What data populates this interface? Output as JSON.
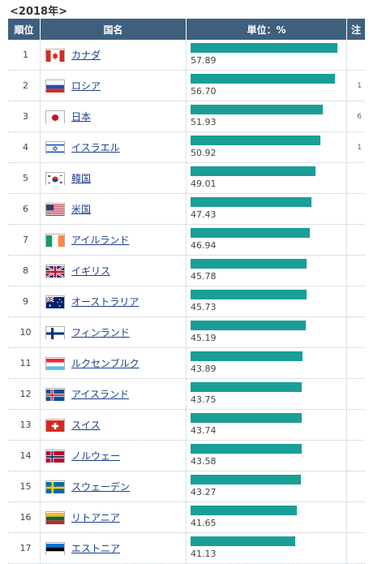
{
  "caption": "<2018年>",
  "header": {
    "rank": "順位",
    "country": "国名",
    "unit": "単位：%",
    "note": "注"
  },
  "chart_data": {
    "type": "bar",
    "title": "<2018年>",
    "categories": [
      "カナダ",
      "ロシア",
      "日本",
      "イスラエル",
      "韓国",
      "米国",
      "アイルランド",
      "イギリス",
      "オーストラリア",
      "フィンランド",
      "ルクセンブルク",
      "アイスランド",
      "スイス",
      "ノルウェー",
      "スウェーデン",
      "リトアニア",
      "エストニア"
    ],
    "values": [
      57.89,
      56.7,
      51.93,
      50.92,
      49.01,
      47.43,
      46.94,
      45.78,
      45.73,
      45.19,
      43.89,
      43.75,
      43.74,
      43.58,
      43.27,
      41.65,
      41.13
    ],
    "ylim": [
      0,
      60
    ]
  },
  "rows": [
    {
      "rank": "1",
      "country": "カナダ",
      "value": "57.89",
      "note": "",
      "flag": "canada"
    },
    {
      "rank": "2",
      "country": "ロシア",
      "value": "56.70",
      "note": "1",
      "flag": "russia"
    },
    {
      "rank": "3",
      "country": "日本",
      "value": "51.93",
      "note": "6",
      "flag": "japan"
    },
    {
      "rank": "4",
      "country": "イスラエル",
      "value": "50.92",
      "note": "1",
      "flag": "israel"
    },
    {
      "rank": "5",
      "country": "韓国",
      "value": "49.01",
      "note": "",
      "flag": "korea"
    },
    {
      "rank": "6",
      "country": "米国",
      "value": "47.43",
      "note": "",
      "flag": "usa"
    },
    {
      "rank": "7",
      "country": "アイルランド",
      "value": "46.94",
      "note": "",
      "flag": "ireland"
    },
    {
      "rank": "8",
      "country": "イギリス",
      "value": "45.78",
      "note": "",
      "flag": "uk"
    },
    {
      "rank": "9",
      "country": "オーストラリア",
      "value": "45.73",
      "note": "",
      "flag": "australia"
    },
    {
      "rank": "10",
      "country": "フィンランド",
      "value": "45.19",
      "note": "",
      "flag": "finland"
    },
    {
      "rank": "11",
      "country": "ルクセンブルク",
      "value": "43.89",
      "note": "",
      "flag": "luxembourg"
    },
    {
      "rank": "12",
      "country": "アイスランド",
      "value": "43.75",
      "note": "",
      "flag": "iceland"
    },
    {
      "rank": "13",
      "country": "スイス",
      "value": "43.74",
      "note": "",
      "flag": "switzerland"
    },
    {
      "rank": "14",
      "country": "ノルウェー",
      "value": "43.58",
      "note": "",
      "flag": "norway"
    },
    {
      "rank": "15",
      "country": "スウェーデン",
      "value": "43.27",
      "note": "",
      "flag": "sweden"
    },
    {
      "rank": "16",
      "country": "リトアニア",
      "value": "41.65",
      "note": "",
      "flag": "lithuania"
    },
    {
      "rank": "17",
      "country": "エストニア",
      "value": "41.13",
      "note": "",
      "flag": "estonia"
    }
  ],
  "colors": {
    "header_bg": "#3f5f7e",
    "bar": "#1a9e98",
    "link": "#1a3e8c"
  }
}
